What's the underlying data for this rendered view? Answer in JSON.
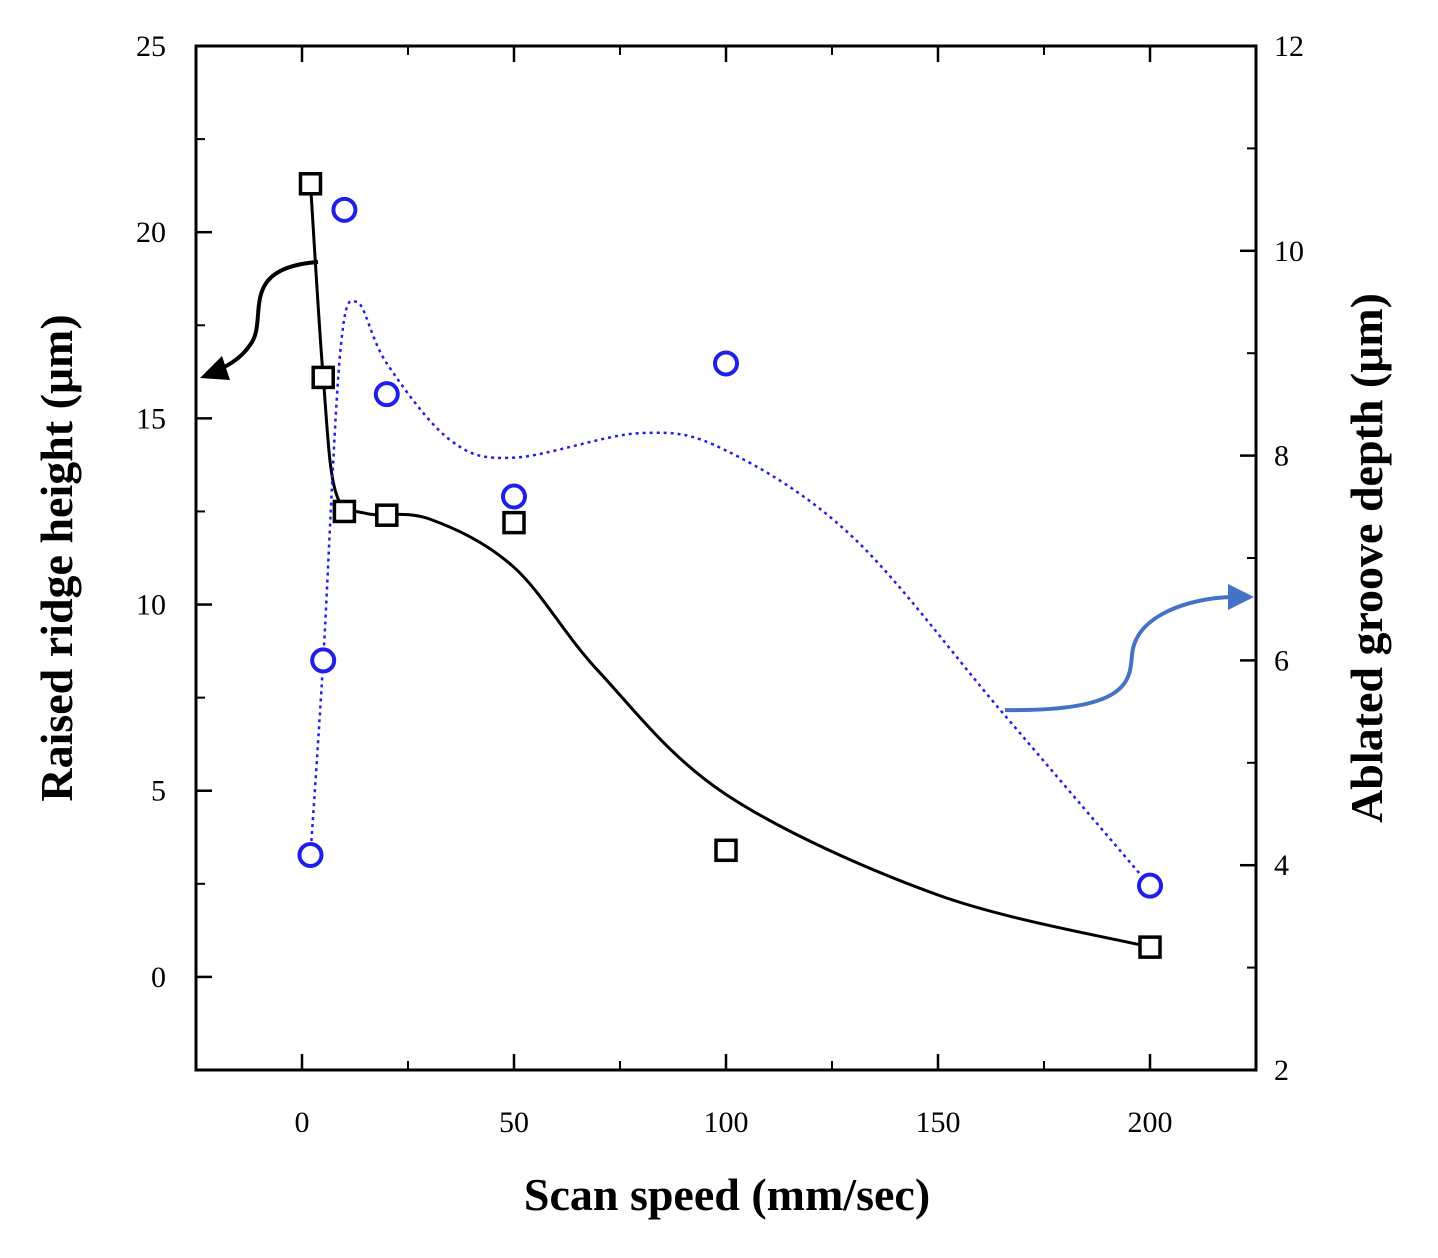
{
  "chart_data": {
    "type": "scatter",
    "title": "",
    "xlabel": "Scan speed (mm/sec)",
    "ylabel_left": "Raised ridge height (μm)",
    "ylabel_right": "Ablated groove depth (μm)",
    "xlim": [
      -25,
      225
    ],
    "ylim_left": [
      -2.5,
      25
    ],
    "ylim_right": [
      2,
      12
    ],
    "x_ticks": [
      0,
      50,
      100,
      150,
      200
    ],
    "x_tick_labels": [
      "0",
      "50",
      "100",
      "150",
      "200"
    ],
    "y_left_ticks": [
      0,
      5,
      10,
      15,
      20,
      25
    ],
    "y_left_tick_labels": [
      "0",
      "5",
      "10",
      "15",
      "20",
      "25"
    ],
    "y_right_ticks": [
      2,
      4,
      6,
      8,
      10,
      12
    ],
    "y_right_tick_labels": [
      "2",
      "4",
      "6",
      "8",
      "10",
      "12"
    ],
    "series": [
      {
        "name": "Raised ridge height",
        "axis": "left",
        "marker": "square",
        "color": "#000000",
        "x": [
          2,
          5,
          10,
          20,
          50,
          100,
          200
        ],
        "y": [
          21.3,
          16.1,
          12.5,
          12.4,
          12.2,
          3.4,
          0.8
        ],
        "fit_line": "solid"
      },
      {
        "name": "Ablated groove depth",
        "axis": "right",
        "marker": "circle",
        "color": "#1f1fe8",
        "x": [
          2,
          5,
          10,
          20,
          50,
          100,
          200
        ],
        "y": [
          4.1,
          6.0,
          10.4,
          8.6,
          7.6,
          8.9,
          3.8
        ],
        "fit_line": "dotted"
      }
    ],
    "annotations": [
      {
        "type": "arrow",
        "points_to": "left axis",
        "color": "#000000"
      },
      {
        "type": "arrow",
        "points_to": "right axis",
        "color": "#4472c4"
      }
    ]
  }
}
